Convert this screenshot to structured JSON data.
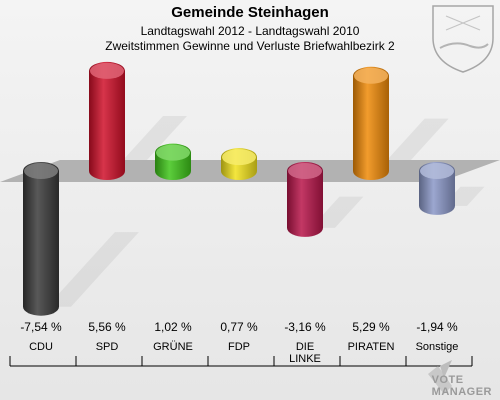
{
  "branding": {
    "line1": "VOTE",
    "line2": "MANAGER"
  },
  "chart_data": {
    "type": "bar",
    "title": "Gemeinde Steinhagen",
    "subtitle": "Landtagswahl 2012 - Landtagswahl 2010",
    "subtitle2": "Zweitstimmen Gewinne und Verluste Briefwahlbezirk 2",
    "xlabel": "",
    "ylabel": "",
    "categories": [
      "CDU",
      "SPD",
      "GRÜNE",
      "FDP",
      "DIE LINKE",
      "PIRATEN",
      "Sonstige"
    ],
    "values": [
      -7.54,
      5.56,
      1.02,
      0.77,
      -3.16,
      5.29,
      -1.94
    ],
    "value_labels": [
      "-7,54 %",
      "5,56 %",
      "1,02 %",
      "0,77 %",
      "-3,16 %",
      "5,29 %",
      "-1,94 %"
    ],
    "colors": [
      "#3a3a3a",
      "#d0102a",
      "#3fc51a",
      "#f2e21c",
      "#b8154a",
      "#f08a08",
      "#8a98c8"
    ],
    "ylim": [
      -7.54,
      5.56
    ],
    "grid": false,
    "legend": "none"
  }
}
